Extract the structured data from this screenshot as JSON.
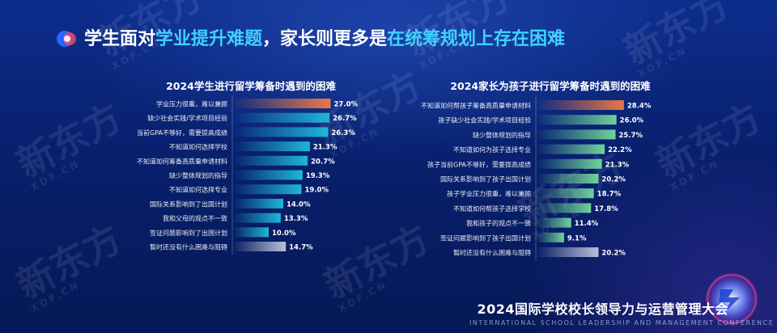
{
  "slide": {
    "title_part1": "学生面对",
    "title_highlight1": "学业提升难题",
    "title_part2": "，家长则更多是",
    "title_highlight2": "在统筹规划上存在困难",
    "footer_title": "2024国际学校校长领导力与运营管理大会",
    "footer_subtitle": "INTERNATIONAL SCHOOL LEADERSHIP AND MANAGEMENT CONFERENCE",
    "watermark_text": "新东方",
    "watermark_sub": "XDF.CN"
  },
  "colors": {
    "highlight": "#3fd2ff",
    "top_bar": "#e8784a",
    "left_bar": "#1fb6d8",
    "right_bar": "#6fd39a",
    "last_bar": "#b8c0d8"
  },
  "chart_data": [
    {
      "type": "bar",
      "orientation": "horizontal",
      "title": "2024学生进行留学筹备时遇到的困难",
      "categories": [
        "学业压力很重，难以兼顾",
        "缺少社会实践/学术项目经验",
        "当前GPA不够好，需要提高成绩",
        "不知道如何选择学校",
        "不知道如何筹备高质量申请材料",
        "缺少整体规划的指导",
        "不知道如何选择专业",
        "国际关系影响到了出国计划",
        "我和父母的观点不一致",
        "签证问题影响到了出国计划",
        "暂时还没有什么困难与阻碍"
      ],
      "values": [
        27.0,
        26.7,
        26.3,
        21.3,
        20.7,
        19.3,
        19.0,
        14.0,
        13.3,
        10.0,
        14.7
      ],
      "value_labels": [
        "27.0%",
        "26.7%",
        "26.3%",
        "21.3%",
        "20.7%",
        "19.3%",
        "19.0%",
        "14.0%",
        "13.3%",
        "10.0%",
        "14.7%"
      ],
      "xlim": [
        0,
        30
      ]
    },
    {
      "type": "bar",
      "orientation": "horizontal",
      "title": "2024家长为孩子进行留学筹备时遇到的困难",
      "categories": [
        "不知道如何帮孩子筹备高质量申请材料",
        "孩子缺少社会实践/学术项目经验",
        "缺少整体规划的指导",
        "不知道如何为孩子选择专业",
        "孩子当前GPA不够好，需要提高成绩",
        "国际关系影响到了孩子出国计划",
        "孩子学业压力很重，难以兼顾",
        "不知道如何帮孩子选择学校",
        "我和孩子的观点不一致",
        "签证问题影响到了孩子出国计划",
        "暂时还没有什么困难与阻碍"
      ],
      "values": [
        28.4,
        26.0,
        25.7,
        22.2,
        21.3,
        20.2,
        18.7,
        17.8,
        11.4,
        9.1,
        20.2
      ],
      "value_labels": [
        "28.4%",
        "26.0%",
        "25.7%",
        "22.2%",
        "21.3%",
        "20.2%",
        "18.7%",
        "17.8%",
        "11.4%",
        "9.1%",
        "20.2%"
      ],
      "xlim": [
        0,
        30
      ]
    }
  ]
}
